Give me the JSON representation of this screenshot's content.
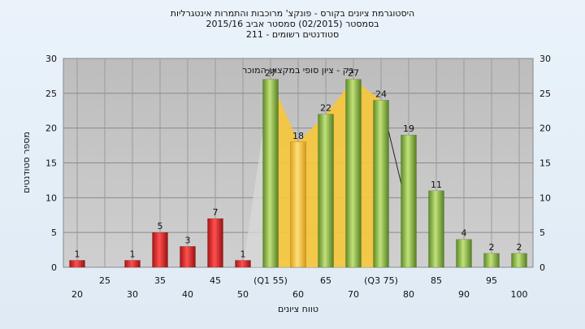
{
  "title": {
    "line1": "היסטוגרמת ציונים בקורס - פונקצ' מרוכבות והתמרות אינטגרליות",
    "line2": "בסמסטר    (02/2015)    סמסטר אביב 2015/16",
    "line3": "סטודנטים רשומים - 211"
  },
  "chart_data": {
    "type": "bar",
    "title": "היסטוגרמת ציונים בקורס - פונקצ' מרוכבות והתמרות אינטגרליות",
    "xlabel": "טווח ציונים",
    "ylabel": "מספר סטודנטים",
    "ylim": [
      0,
      30
    ],
    "yticks": [
      0,
      5,
      10,
      15,
      20,
      25,
      30
    ],
    "right_axis": true,
    "grid": true,
    "x_tick_labels_lower": [
      "20",
      "30",
      "40",
      "50",
      "60",
      "70",
      "80",
      "90",
      "100"
    ],
    "x_tick_labels_upper": [
      "25",
      "35",
      "45",
      "(Q1 55)",
      "65",
      "(Q3 75)",
      "85",
      "95"
    ],
    "bins": [
      20,
      25,
      30,
      35,
      40,
      45,
      50,
      55,
      60,
      65,
      70,
      75,
      80,
      85,
      90,
      95,
      100
    ],
    "values": [
      1,
      0,
      1,
      5,
      3,
      7,
      1,
      27,
      18,
      22,
      27,
      24,
      19,
      11,
      4,
      2,
      2
    ],
    "bar_colors": [
      "red",
      "red",
      "red",
      "red",
      "red",
      "red",
      "red",
      "green",
      "yellow",
      "green",
      "green",
      "green",
      "green",
      "green",
      "green",
      "green",
      "green"
    ],
    "annotation": "בק - ציון סופי במקצוע המוכר",
    "colors": {
      "fail": "#d42a2a",
      "pass": "#8cba45",
      "iqr": "#f5c232",
      "plot_bg": "#c0c0c0",
      "page_bg": "#e4eef7"
    }
  }
}
